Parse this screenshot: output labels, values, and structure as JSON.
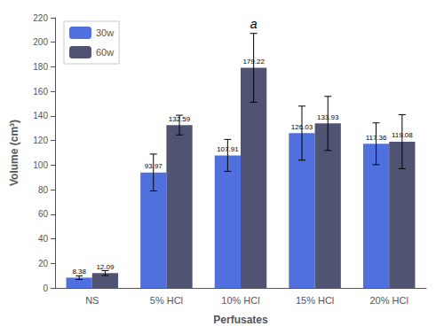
{
  "chart_data": {
    "type": "bar",
    "categories": [
      "NS",
      "5% HCl",
      "10% HCl",
      "15% HCl",
      "20% HCl"
    ],
    "series": [
      {
        "name": "30w",
        "values": [
          8.38,
          93.97,
          107.91,
          126.03,
          117.36
        ],
        "errors": [
          1.5,
          15.0,
          13.0,
          22.0,
          17.0
        ]
      },
      {
        "name": "60w",
        "values": [
          12.09,
          132.59,
          179.22,
          133.93,
          119.08
        ],
        "errors": [
          2.0,
          8.0,
          28.0,
          22.0,
          22.0
        ]
      }
    ],
    "xlabel": "Perfusates",
    "ylabel": "Volume (cm³)",
    "ylim": [
      0,
      220
    ],
    "yticks": [
      0,
      20,
      40,
      60,
      80,
      100,
      120,
      140,
      160,
      180,
      200,
      220
    ],
    "grid": false,
    "legend": "upper left",
    "data_labels": true,
    "annotations": [
      {
        "text": "a",
        "category": "10% HCl",
        "series": "60w"
      }
    ]
  }
}
